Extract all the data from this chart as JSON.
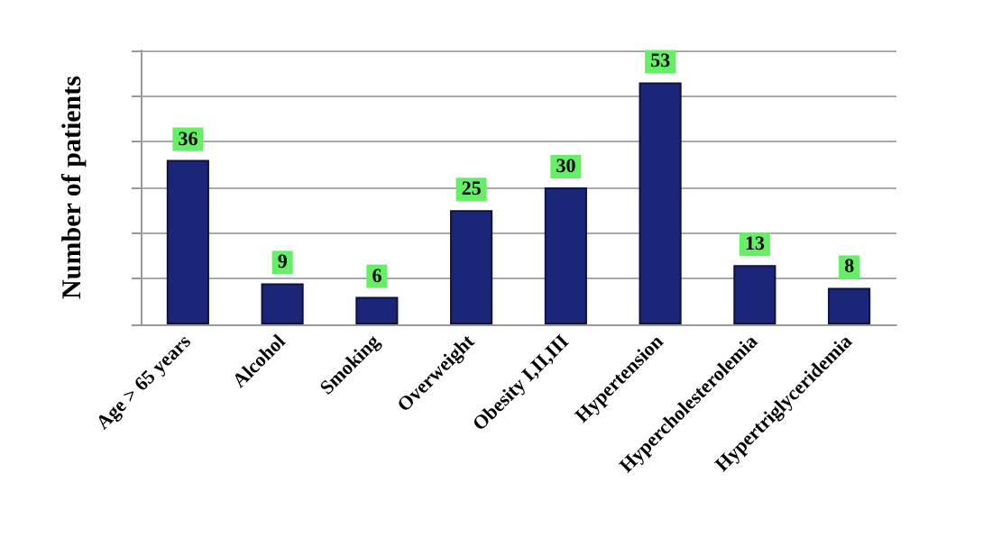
{
  "chart_data": {
    "type": "bar",
    "ylabel": "Number of patients",
    "categories": [
      "Age > 65 years",
      "Alcohol",
      "Smoking",
      "Overweight",
      "Obesity I,II,III",
      "Hypertension",
      "Hypercholesterolemia",
      "Hypertriglyceridemia"
    ],
    "values": [
      36,
      9,
      6,
      25,
      30,
      53,
      13,
      8
    ],
    "color": "#1c2678",
    "ylim": [
      0,
      60
    ],
    "yticks": [
      {
        "value": 0,
        "label": null
      },
      {
        "value": 10,
        "label": null
      },
      {
        "value": 20,
        "label": null
      },
      {
        "value": 30,
        "label": null
      },
      {
        "value": 40,
        "label": null
      },
      {
        "value": 50,
        "label": null
      },
      {
        "value": 60,
        "label": null
      }
    ],
    "grid": "y",
    "tick_labels": "x",
    "data_labels": true
  }
}
